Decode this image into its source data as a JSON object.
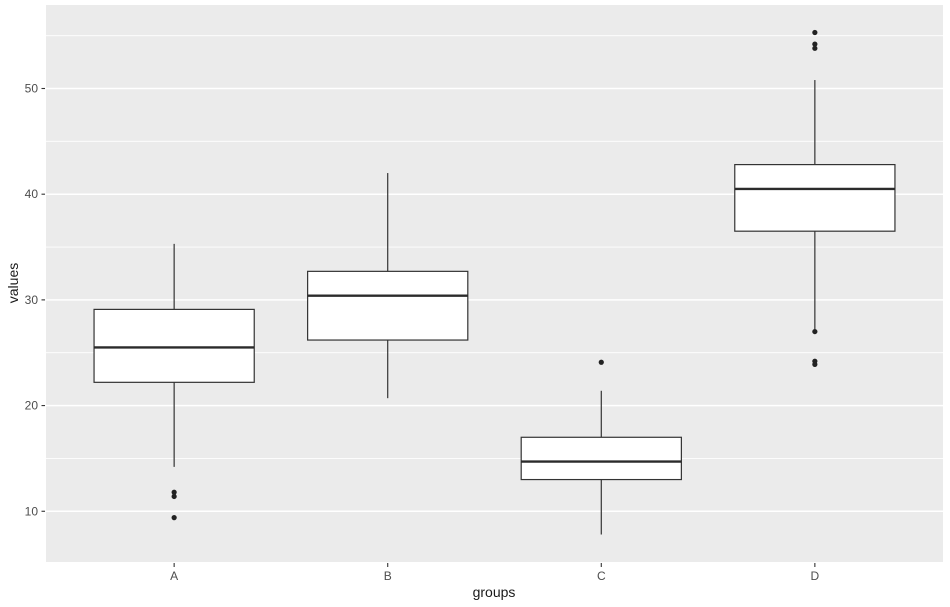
{
  "chart_data": {
    "type": "boxplot",
    "title": "",
    "xlabel": "groups",
    "ylabel": "values",
    "categories": [
      "A",
      "B",
      "C",
      "D"
    ],
    "series": [
      {
        "category": "A",
        "whisker_low": 14.2,
        "q1": 22.2,
        "median": 25.5,
        "q3": 29.1,
        "whisker_high": 35.3,
        "outliers": [
          11.8,
          11.4,
          9.4
        ]
      },
      {
        "category": "B",
        "whisker_low": 20.7,
        "q1": 26.2,
        "median": 30.4,
        "q3": 32.7,
        "whisker_high": 42.0,
        "outliers": []
      },
      {
        "category": "C",
        "whisker_low": 7.8,
        "q1": 13.0,
        "median": 14.7,
        "q3": 17.0,
        "whisker_high": 21.4,
        "outliers": [
          24.1
        ]
      },
      {
        "category": "D",
        "whisker_low": 27.2,
        "q1": 36.5,
        "median": 40.5,
        "q3": 42.8,
        "whisker_high": 50.8,
        "outliers": [
          55.3,
          54.2,
          53.8,
          27.0,
          24.2,
          23.9
        ]
      }
    ],
    "y_ticks": [
      10,
      20,
      30,
      40,
      50
    ],
    "y_minor_ticks": [
      15,
      25,
      35,
      45,
      55
    ],
    "ylim": [
      5.2,
      57.9
    ],
    "grid": "major-and-minor",
    "legend": false,
    "style": {
      "panel_bg": "#ebebeb",
      "grid_color": "#ffffff",
      "box_fill": "#ffffff",
      "box_stroke": "#333333",
      "median_stroke": "#2b2b2b",
      "outlier_fill": "#222222",
      "tick_mark_color": "#333333",
      "tick_label_color": "#4d4d4d",
      "axis_title_color": "#1a1a1a",
      "figure_bg": "#ffffff"
    }
  }
}
